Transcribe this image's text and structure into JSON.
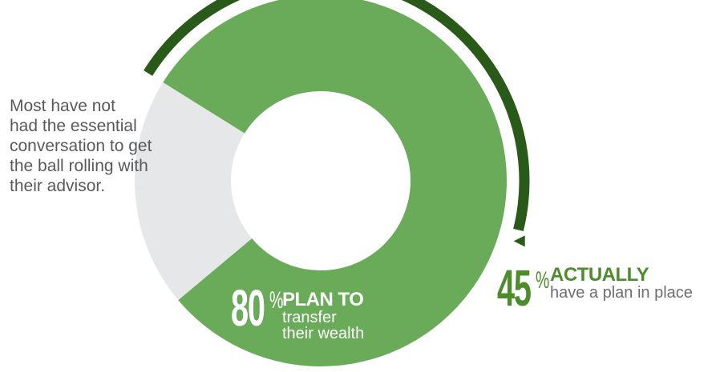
{
  "chart_data": {
    "type": "pie",
    "style": "donut",
    "slices": [
      {
        "key": "plan_to",
        "value": 80,
        "color": "#6aab5a"
      },
      {
        "key": "not",
        "value": 20,
        "color": "#e6e7e8"
      }
    ],
    "overlay_arc": {
      "key": "actually",
      "value": 45,
      "color": "#2a5a1a"
    },
    "annotations": {
      "plan_to": {
        "number": "80",
        "pct": "%",
        "headline": "PLAN TO",
        "line1": "transfer",
        "line2": "their wealth"
      },
      "actually": {
        "number": "45",
        "pct": "%",
        "headline": "ACTUALLY",
        "line1": "have a plan in place"
      },
      "not": {
        "lines": [
          "Most have not",
          "had the essential",
          "conversation to get",
          "the ball rolling with",
          "their advisor."
        ]
      }
    }
  },
  "colors": {
    "arrow": "#2a5a1a",
    "center": "#ffffff"
  }
}
